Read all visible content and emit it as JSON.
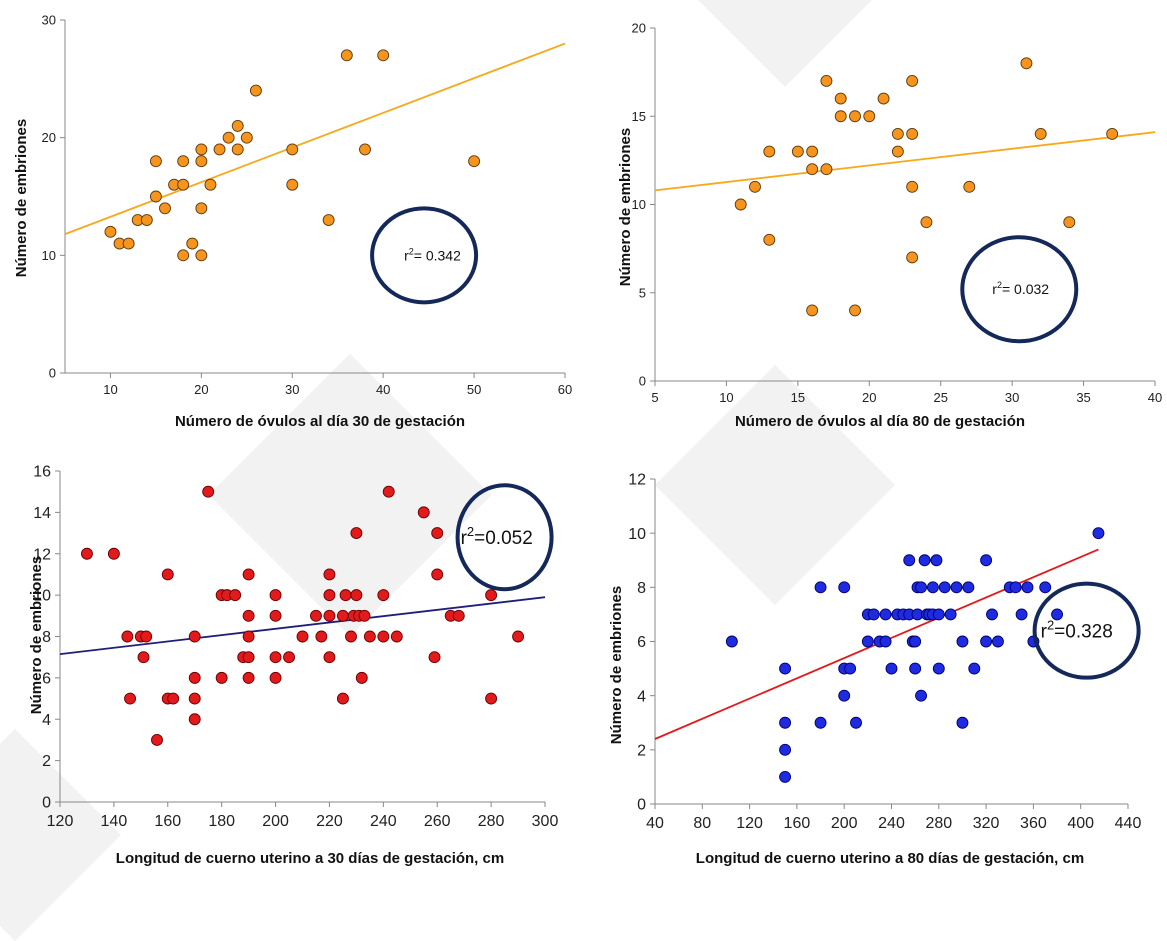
{
  "chart_data": [
    {
      "type": "scatter",
      "xlabel": "Número de óvulos al día 30 de gestación",
      "ylabel": "Número de embriones",
      "xlim": [
        5,
        60
      ],
      "ylim": [
        0,
        30
      ],
      "xticks": [
        10,
        20,
        30,
        40,
        50,
        60
      ],
      "yticks": [
        0,
        10,
        20,
        30
      ],
      "marker_color": "#F7941D",
      "line_color": "#F7A81B",
      "points": [
        [
          10,
          12
        ],
        [
          11,
          11
        ],
        [
          12,
          11
        ],
        [
          13,
          13
        ],
        [
          14,
          13
        ],
        [
          15,
          15
        ],
        [
          15,
          18
        ],
        [
          16,
          14
        ],
        [
          17,
          16
        ],
        [
          18,
          10
        ],
        [
          18,
          16
        ],
        [
          18,
          18
        ],
        [
          19,
          11
        ],
        [
          20,
          10
        ],
        [
          20,
          14
        ],
        [
          20,
          18
        ],
        [
          20,
          19
        ],
        [
          21,
          16
        ],
        [
          22,
          19
        ],
        [
          23,
          20
        ],
        [
          24,
          19
        ],
        [
          24,
          21
        ],
        [
          25,
          20
        ],
        [
          26,
          24
        ],
        [
          30,
          16
        ],
        [
          30,
          19
        ],
        [
          34,
          13
        ],
        [
          36,
          27
        ],
        [
          38,
          19
        ],
        [
          40,
          27
        ],
        [
          50,
          18
        ]
      ],
      "trend": [
        [
          5,
          11.8
        ],
        [
          60,
          28.0
        ]
      ],
      "annotation": {
        "r2_prefix": "r",
        "r2_sup": "2",
        "r2_value": "= 0.342",
        "at": [
          44.5,
          10
        ]
      }
    },
    {
      "type": "scatter",
      "xlabel": "Número de óvulos al día 80 de gestación",
      "ylabel": "Número de embriones",
      "xlim": [
        5,
        40
      ],
      "ylim": [
        0,
        20
      ],
      "xticks": [
        5,
        10,
        15,
        20,
        25,
        30,
        35,
        40
      ],
      "yticks": [
        0,
        5,
        10,
        15,
        20
      ],
      "marker_color": "#F7941D",
      "line_color": "#F7A81B",
      "points": [
        [
          11,
          10
        ],
        [
          12,
          11
        ],
        [
          13,
          8
        ],
        [
          13,
          13
        ],
        [
          15,
          13
        ],
        [
          16,
          4
        ],
        [
          16,
          12
        ],
        [
          16,
          13
        ],
        [
          17,
          12
        ],
        [
          17,
          17
        ],
        [
          18,
          15
        ],
        [
          18,
          16
        ],
        [
          19,
          4
        ],
        [
          19,
          15
        ],
        [
          20,
          15
        ],
        [
          21,
          16
        ],
        [
          22,
          13
        ],
        [
          22,
          14
        ],
        [
          23,
          7
        ],
        [
          23,
          11
        ],
        [
          23,
          14
        ],
        [
          23,
          17
        ],
        [
          24,
          9
        ],
        [
          27,
          11
        ],
        [
          31,
          18
        ],
        [
          32,
          14
        ],
        [
          34,
          9
        ],
        [
          37,
          14
        ]
      ],
      "trend": [
        [
          5,
          10.8
        ],
        [
          40,
          14.1
        ]
      ],
      "annotation": {
        "r2_prefix": "r",
        "r2_sup": "2",
        "r2_value": "= 0.032",
        "at": [
          30.5,
          5.2
        ]
      }
    },
    {
      "type": "scatter",
      "xlabel": "Longitud de cuerno uterino a 30 días de gestación, cm",
      "ylabel": "Número de embriones",
      "xlim": [
        120,
        300
      ],
      "ylim": [
        0,
        16
      ],
      "xticks": [
        120,
        140,
        160,
        180,
        200,
        220,
        240,
        260,
        280,
        300
      ],
      "yticks": [
        0,
        2,
        4,
        6,
        8,
        10,
        12,
        14,
        16
      ],
      "marker_color": "#E31A1C",
      "line_color": "#1F1F7A",
      "points": [
        [
          130,
          12
        ],
        [
          140,
          12
        ],
        [
          145,
          8
        ],
        [
          146,
          5
        ],
        [
          150,
          8
        ],
        [
          151,
          7
        ],
        [
          152,
          8
        ],
        [
          156,
          3
        ],
        [
          160,
          5
        ],
        [
          160,
          11
        ],
        [
          162,
          5
        ],
        [
          170,
          4
        ],
        [
          170,
          5
        ],
        [
          170,
          6
        ],
        [
          170,
          8
        ],
        [
          175,
          15
        ],
        [
          180,
          6
        ],
        [
          180,
          10
        ],
        [
          182,
          10
        ],
        [
          185,
          10
        ],
        [
          188,
          7
        ],
        [
          190,
          6
        ],
        [
          190,
          7
        ],
        [
          190,
          8
        ],
        [
          190,
          9
        ],
        [
          190,
          11
        ],
        [
          200,
          6
        ],
        [
          200,
          7
        ],
        [
          200,
          9
        ],
        [
          200,
          10
        ],
        [
          205,
          7
        ],
        [
          210,
          8
        ],
        [
          215,
          9
        ],
        [
          217,
          8
        ],
        [
          220,
          7
        ],
        [
          220,
          9
        ],
        [
          220,
          10
        ],
        [
          220,
          11
        ],
        [
          225,
          5
        ],
        [
          225,
          9
        ],
        [
          226,
          10
        ],
        [
          228,
          8
        ],
        [
          229,
          9
        ],
        [
          230,
          10
        ],
        [
          230,
          13
        ],
        [
          231,
          9
        ],
        [
          232,
          6
        ],
        [
          233,
          9
        ],
        [
          235,
          8
        ],
        [
          240,
          8
        ],
        [
          240,
          10
        ],
        [
          242,
          15
        ],
        [
          245,
          8
        ],
        [
          255,
          14
        ],
        [
          259,
          7
        ],
        [
          260,
          11
        ],
        [
          260,
          13
        ],
        [
          265,
          9
        ],
        [
          268,
          9
        ],
        [
          280,
          5
        ],
        [
          280,
          10
        ],
        [
          290,
          8
        ]
      ],
      "trend": [
        [
          120,
          7.15
        ],
        [
          300,
          9.9
        ]
      ],
      "annotation": {
        "r2_prefix": "r",
        "r2_sup": "2",
        "r2_value": "=0.052",
        "at": [
          285,
          12.8
        ]
      }
    },
    {
      "type": "scatter",
      "xlabel": "Longitud de cuerno uterino a 80 días de gestación, cm",
      "ylabel": "Número de embriones",
      "xlim": [
        40,
        440
      ],
      "ylim": [
        0,
        12
      ],
      "xticks": [
        40,
        80,
        120,
        160,
        200,
        240,
        280,
        320,
        360,
        400,
        440
      ],
      "yticks": [
        0,
        2,
        4,
        6,
        8,
        10,
        12
      ],
      "marker_color": "#1E2BE0",
      "line_color": "#E31A1C",
      "points": [
        [
          105,
          6
        ],
        [
          150,
          1
        ],
        [
          150,
          2
        ],
        [
          150,
          3
        ],
        [
          150,
          5
        ],
        [
          180,
          3
        ],
        [
          180,
          8
        ],
        [
          200,
          4
        ],
        [
          200,
          5
        ],
        [
          200,
          8
        ],
        [
          205,
          5
        ],
        [
          210,
          3
        ],
        [
          220,
          6
        ],
        [
          220,
          7
        ],
        [
          225,
          7
        ],
        [
          230,
          6
        ],
        [
          235,
          6
        ],
        [
          235,
          7
        ],
        [
          240,
          5
        ],
        [
          245,
          7
        ],
        [
          250,
          7
        ],
        [
          255,
          9
        ],
        [
          255,
          7
        ],
        [
          258,
          6
        ],
        [
          260,
          5
        ],
        [
          260,
          6
        ],
        [
          262,
          7
        ],
        [
          262,
          8
        ],
        [
          265,
          4
        ],
        [
          265,
          8
        ],
        [
          268,
          9
        ],
        [
          270,
          7
        ],
        [
          272,
          7
        ],
        [
          275,
          7
        ],
        [
          275,
          8
        ],
        [
          278,
          9
        ],
        [
          280,
          5
        ],
        [
          280,
          7
        ],
        [
          285,
          8
        ],
        [
          290,
          7
        ],
        [
          295,
          8
        ],
        [
          300,
          3
        ],
        [
          300,
          6
        ],
        [
          305,
          8
        ],
        [
          310,
          5
        ],
        [
          320,
          6
        ],
        [
          320,
          9
        ],
        [
          325,
          7
        ],
        [
          330,
          6
        ],
        [
          340,
          8
        ],
        [
          345,
          8
        ],
        [
          350,
          7
        ],
        [
          355,
          8
        ],
        [
          360,
          6
        ],
        [
          370,
          8
        ],
        [
          380,
          7
        ],
        [
          415,
          10
        ]
      ],
      "trend": [
        [
          40,
          2.4
        ],
        [
          415,
          9.4
        ]
      ],
      "annotation": {
        "r2_prefix": "r",
        "r2_sup": "2",
        "r2_value": "=0.328",
        "at": [
          405,
          6.4
        ]
      }
    }
  ]
}
